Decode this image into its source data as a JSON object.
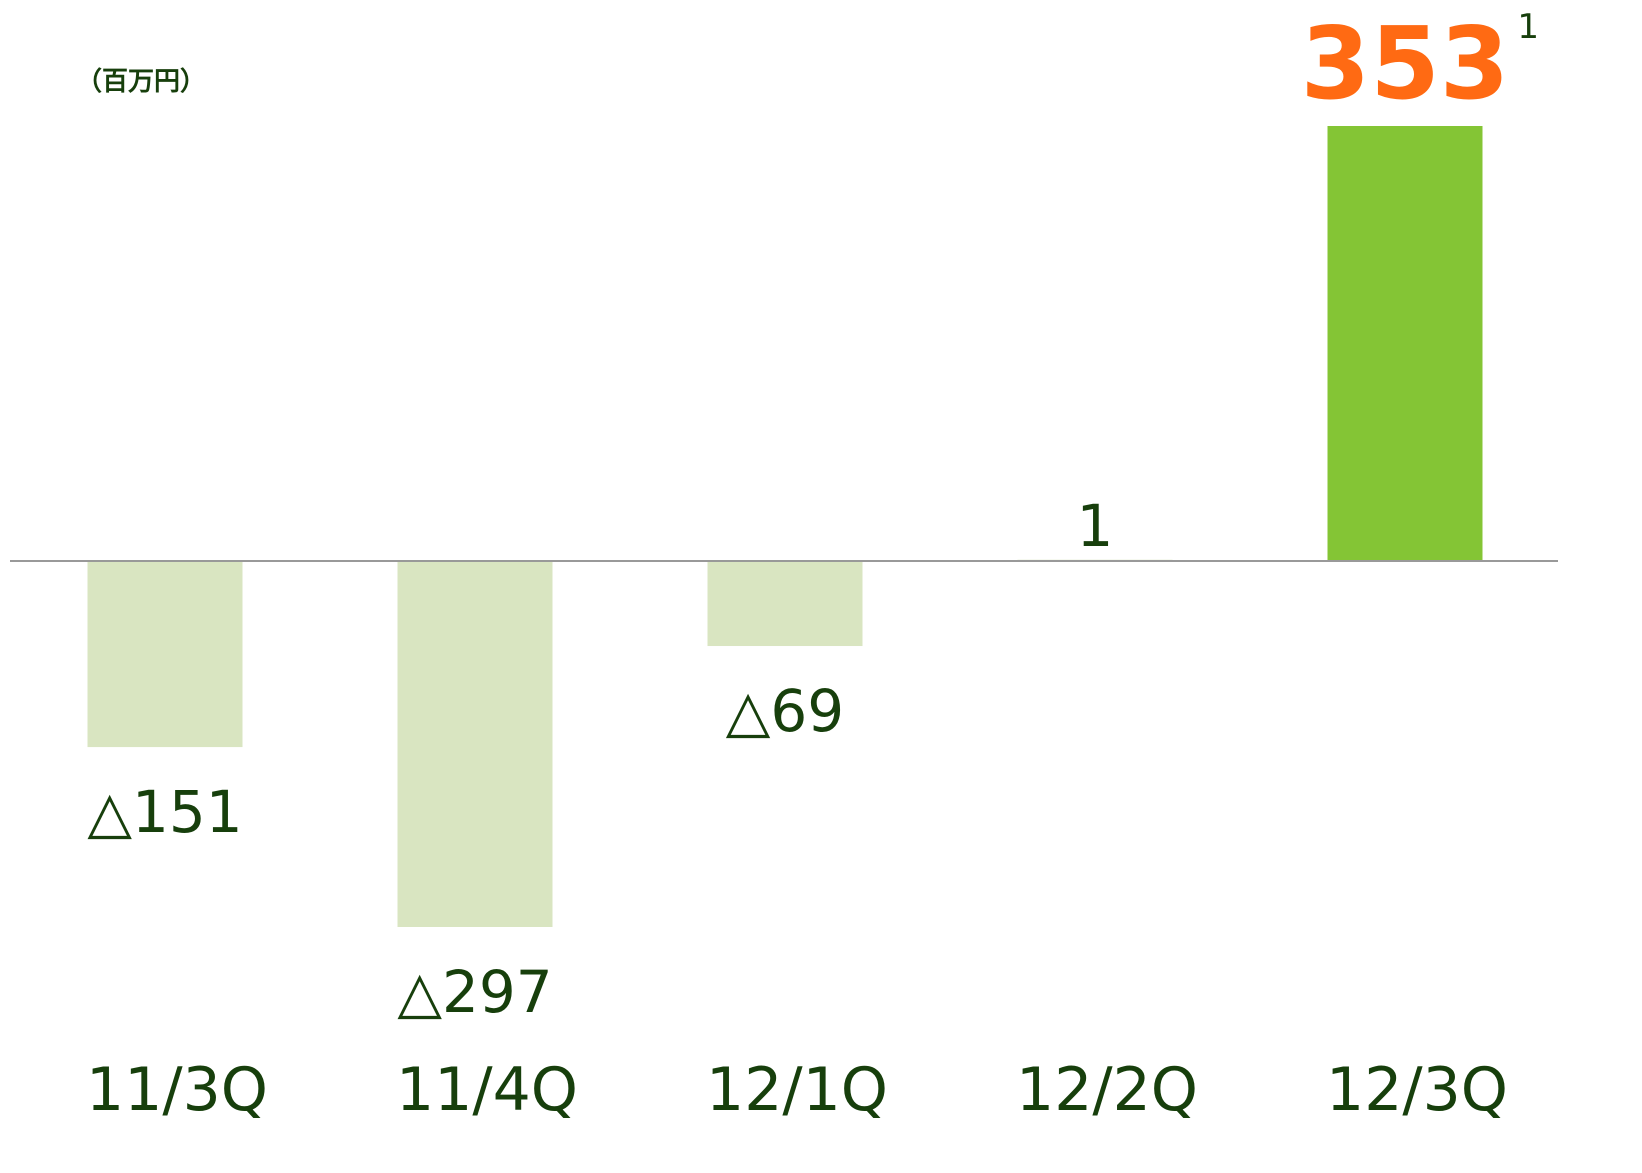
{
  "chart_data": {
    "type": "bar",
    "ylabel": "（百万円）",
    "categories": [
      "11/3Q",
      "11/4Q",
      "12/1Q",
      "12/2Q",
      "12/3Q"
    ],
    "values": [
      -151,
      -297,
      -69,
      1,
      353
    ],
    "value_labels": [
      "△151",
      "△297",
      "△69",
      "1",
      "353"
    ],
    "colors": [
      "#d9e5c1",
      "#d9e5c1",
      "#d9e5c1",
      "#d9e5c1",
      "#84c535"
    ],
    "value_label_colors": [
      "#173f0c",
      "#173f0c",
      "#173f0c",
      "#173f0c",
      "#ff6a13"
    ],
    "annotations": [
      "1"
    ]
  }
}
